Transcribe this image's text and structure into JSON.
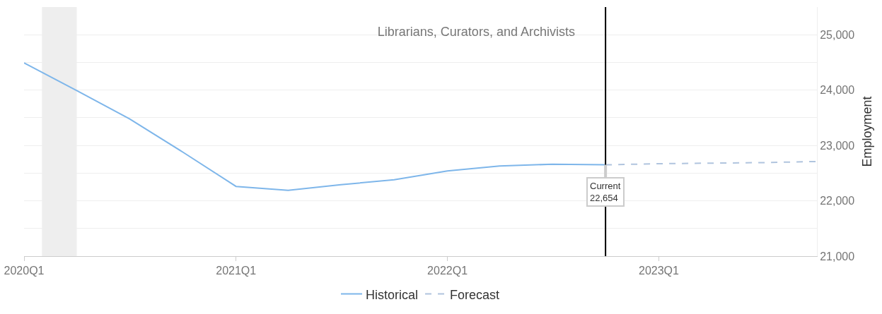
{
  "chart_data": {
    "type": "line",
    "title": "Librarians, Curators, and Archivists",
    "ylabel": "Employment",
    "series": [
      {
        "name": "Historical",
        "color": "#7eb6ea",
        "line_style": "solid",
        "x": [
          "2020-01",
          "2020-04",
          "2020-07",
          "2020-10",
          "2021-01",
          "2021-04",
          "2021-07",
          "2021-10",
          "2022-01",
          "2022-04",
          "2022-07",
          "2022-10"
        ],
        "values": [
          24490,
          23990,
          23480,
          22880,
          22260,
          22190,
          22290,
          22380,
          22540,
          22630,
          22660,
          22650
        ]
      },
      {
        "name": "Forecast",
        "color": "#b0c4de",
        "line_style": "dashed",
        "x": [
          "2022-10",
          "2023-01",
          "2023-04",
          "2023-07",
          "2023-10"
        ],
        "values": [
          22650,
          22670,
          22680,
          22690,
          22710
        ]
      }
    ],
    "xlim": [
      "2020-01",
      "2023-10"
    ],
    "xticks": [
      {
        "value": "2020-01",
        "label": "2020Q1"
      },
      {
        "value": "2021-01",
        "label": "2021Q1"
      },
      {
        "value": "2022-01",
        "label": "2022Q1"
      },
      {
        "value": "2023-01",
        "label": "2023Q1"
      }
    ],
    "ylim": [
      21000,
      25500
    ],
    "yticks": [
      {
        "value": 21000,
        "label": "21,000"
      },
      {
        "value": 21500,
        "label": null
      },
      {
        "value": 22000,
        "label": "22,000"
      },
      {
        "value": 22500,
        "label": null
      },
      {
        "value": 23000,
        "label": "23,000"
      },
      {
        "value": 23500,
        "label": null
      },
      {
        "value": 24000,
        "label": "24,000"
      },
      {
        "value": 24500,
        "label": null
      },
      {
        "value": 25000,
        "label": "25,000"
      }
    ],
    "ref_lines": [
      {
        "axis": "x",
        "value": "2022-10",
        "color": "#000000"
      }
    ],
    "bands": [
      {
        "axis": "x",
        "from": "2020-02",
        "to": "2020-04",
        "color": "#eeeeee"
      }
    ],
    "annotations": [
      {
        "text": "Current\n22,654",
        "x": "2022-10",
        "y": 22650
      }
    ],
    "grid": "y",
    "legend": "bottom",
    "marker": "none"
  }
}
